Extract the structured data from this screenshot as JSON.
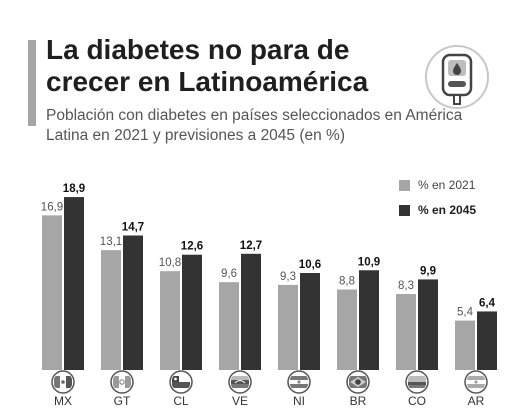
{
  "header": {
    "title": "La diabetes no para de crecer en Latinoamérica",
    "subtitle": "Población con diabetes en países seleccionados en América Latina en 2021 y previsiones a 2045 (en %)",
    "logo_icon": "glucose-meter-icon"
  },
  "colors": {
    "accent": "#a6a6a6",
    "series_2021": "#a6a6a6",
    "series_2045": "#333333",
    "label_2021": "#555555",
    "label_2045": "#111111"
  },
  "chart_data": {
    "type": "bar",
    "categories": [
      "MX",
      "GT",
      "CL",
      "VE",
      "NI",
      "BR",
      "CO",
      "AR"
    ],
    "series": [
      {
        "name": "% en 2021",
        "values": [
          16.9,
          13.1,
          10.8,
          9.6,
          9.3,
          8.8,
          8.3,
          5.4
        ],
        "labels": [
          "16,9",
          "13,1",
          "10,8",
          "9,6",
          "9,3",
          "8,8",
          "8,3",
          "5,4"
        ]
      },
      {
        "name": "% en 2045",
        "values": [
          18.9,
          14.7,
          12.6,
          12.7,
          10.6,
          10.9,
          9.9,
          6.4
        ],
        "labels": [
          "18,9",
          "14,7",
          "12,6",
          "12,7",
          "10,6",
          "10,9",
          "9,9",
          "6,4"
        ]
      }
    ],
    "flag_icons": [
      "mexico-flag-icon",
      "guatemala-flag-icon",
      "chile-flag-icon",
      "venezuela-flag-icon",
      "nicaragua-flag-icon",
      "brazil-flag-icon",
      "colombia-flag-icon",
      "argentina-flag-icon"
    ],
    "ylim": [
      0,
      20
    ],
    "grid": false,
    "legend_position": "top-right"
  }
}
